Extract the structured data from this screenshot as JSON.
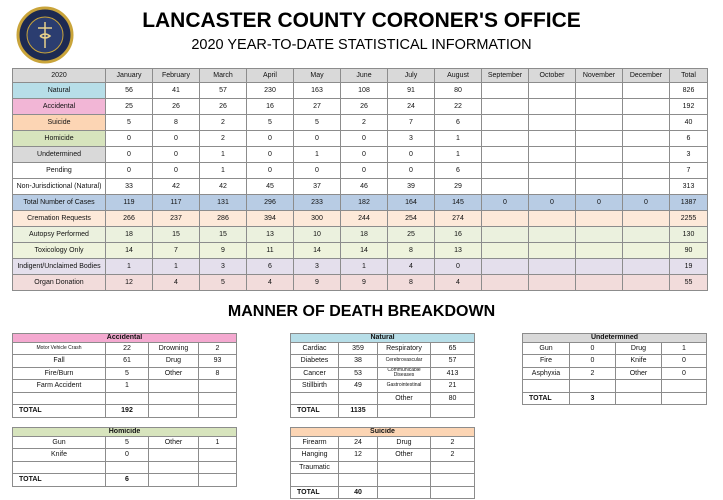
{
  "header": {
    "title": "LANCASTER COUNTY CORONER'S OFFICE",
    "subtitle": "2020 YEAR-TO-DATE STATISTICAL INFORMATION"
  },
  "main": {
    "columns": [
      "2020",
      "January",
      "February",
      "March",
      "April",
      "May",
      "June",
      "July",
      "August",
      "September",
      "October",
      "November",
      "December",
      "Total"
    ],
    "header_color": "#d9d9d9",
    "rows": [
      {
        "label": "Natural",
        "values": [
          56,
          41,
          57,
          230,
          163,
          108,
          91,
          80
        ],
        "total": 826,
        "color": "#b7dee8",
        "fill": "label"
      },
      {
        "label": "Accidental",
        "values": [
          25,
          26,
          26,
          16,
          27,
          26,
          24,
          22
        ],
        "total": 192,
        "color": "#f2b6d6",
        "fill": "label"
      },
      {
        "label": "Suicide",
        "values": [
          5,
          8,
          2,
          5,
          5,
          2,
          7,
          6
        ],
        "total": 40,
        "color": "#fcd5b4",
        "fill": "label"
      },
      {
        "label": "Homicide",
        "values": [
          0,
          0,
          2,
          0,
          0,
          0,
          3,
          1
        ],
        "total": 6,
        "color": "#d7e4bd",
        "fill": "label"
      },
      {
        "label": "Undetermined",
        "values": [
          0,
          0,
          1,
          0,
          1,
          0,
          0,
          1
        ],
        "total": 3,
        "color": "#d9d9d9",
        "fill": "label"
      },
      {
        "label": "Pending",
        "values": [
          0,
          0,
          1,
          0,
          0,
          0,
          0,
          6
        ],
        "total": 7,
        "color": "#ffffff",
        "fill": "label"
      },
      {
        "label": "Non-Jurisdictional (Natural)",
        "values": [
          33,
          42,
          42,
          45,
          37,
          46,
          39,
          29
        ],
        "total": 313,
        "color": "#ffffff",
        "fill": "label"
      },
      {
        "label": "Total Number of Cases",
        "values": [
          119,
          117,
          131,
          296,
          233,
          182,
          164,
          145,
          0,
          0,
          0,
          0
        ],
        "total": 1387,
        "color": "#b8cce4",
        "fill": "row"
      },
      {
        "label": "Cremation Requests",
        "values": [
          266,
          237,
          286,
          394,
          300,
          244,
          254,
          274
        ],
        "total": 2255,
        "color": "#fde9d9",
        "fill": "row"
      },
      {
        "label": "Autopsy Performed",
        "values": [
          18,
          15,
          15,
          13,
          10,
          18,
          25,
          16
        ],
        "total": 130,
        "color": "#ebf1de",
        "fill": "row"
      },
      {
        "label": "Toxicology Only",
        "values": [
          14,
          7,
          9,
          11,
          14,
          14,
          8,
          13
        ],
        "total": 90,
        "color": "#eef3dc",
        "fill": "row"
      },
      {
        "label": "Indigent/Unclaimed Bodies",
        "values": [
          1,
          1,
          3,
          6,
          3,
          1,
          4,
          0
        ],
        "total": 19,
        "color": "#e4dfec",
        "fill": "row"
      },
      {
        "label": "Organ Donation",
        "values": [
          12,
          4,
          5,
          4,
          9,
          9,
          8,
          4
        ],
        "total": 55,
        "color": "#f2dcdb",
        "fill": "row"
      }
    ]
  },
  "breakdown": {
    "title": "MANNER OF DEATH BREAKDOWN",
    "total_label": "TOTAL",
    "tables": [
      {
        "title": "Accidental",
        "color": "#f4a9d0",
        "total": 192,
        "rows": [
          {
            "left": {
              "label": "Motor Vehicle Crash",
              "value": 22
            },
            "right": {
              "label": "Drowning",
              "value": 2
            }
          },
          {
            "left": {
              "label": "Fall",
              "value": 61
            },
            "right": {
              "label": "Drug",
              "value": 93
            }
          },
          {
            "left": {
              "label": "Fire/Burn",
              "value": 5
            },
            "right": {
              "label": "Other",
              "value": 8
            }
          },
          {
            "left": {
              "label": "Farm Accident",
              "value": 1
            }
          }
        ]
      },
      {
        "title": "Natural",
        "color": "#b7dee8",
        "total": 1135,
        "rows": [
          {
            "left": {
              "label": "Cardiac",
              "value": 359
            },
            "right": {
              "label": "Respiratory",
              "value": 65
            }
          },
          {
            "left": {
              "label": "Diabetes",
              "value": 38
            },
            "right": {
              "label": "Cerebrovascular",
              "value": 57
            }
          },
          {
            "left": {
              "label": "Cancer",
              "value": 53
            },
            "right": {
              "label": "Communicable Diseases",
              "value": 413
            }
          },
          {
            "left": {
              "label": "Stillbirth",
              "value": 49
            },
            "right": {
              "label": "Gastrointestinal",
              "value": 21
            }
          },
          {
            "right": {
              "label": "Other",
              "value": 80
            }
          }
        ]
      },
      {
        "title": "Undetermined",
        "color": "#d9d9d9",
        "total": 3,
        "rows": [
          {
            "left": {
              "label": "Gun",
              "value": 0
            },
            "right": {
              "label": "Drug",
              "value": 1
            }
          },
          {
            "left": {
              "label": "Fire",
              "value": 0
            },
            "right": {
              "label": "Knife",
              "value": 0
            }
          },
          {
            "left": {
              "label": "Asphyxia",
              "value": 2
            },
            "right": {
              "label": "Other",
              "value": 0
            }
          }
        ]
      },
      {
        "title": "Homicide",
        "color": "#d7e4bd",
        "total": 6,
        "rows": [
          {
            "left": {
              "label": "Gun",
              "value": 5
            },
            "right": {
              "label": "Other",
              "value": 1
            }
          },
          {
            "left": {
              "label": "Knife",
              "value": 0
            }
          }
        ]
      },
      {
        "title": "Suicide",
        "color": "#fcd5b4",
        "total": 40,
        "rows": [
          {
            "left": {
              "label": "Firearm",
              "value": 24
            },
            "right": {
              "label": "Drug",
              "value": 2
            }
          },
          {
            "left": {
              "label": "Hanging",
              "value": 12
            },
            "right": {
              "label": "Other",
              "value": 2
            }
          },
          {
            "left": {
              "label": "Traumatic"
            }
          }
        ]
      }
    ]
  }
}
